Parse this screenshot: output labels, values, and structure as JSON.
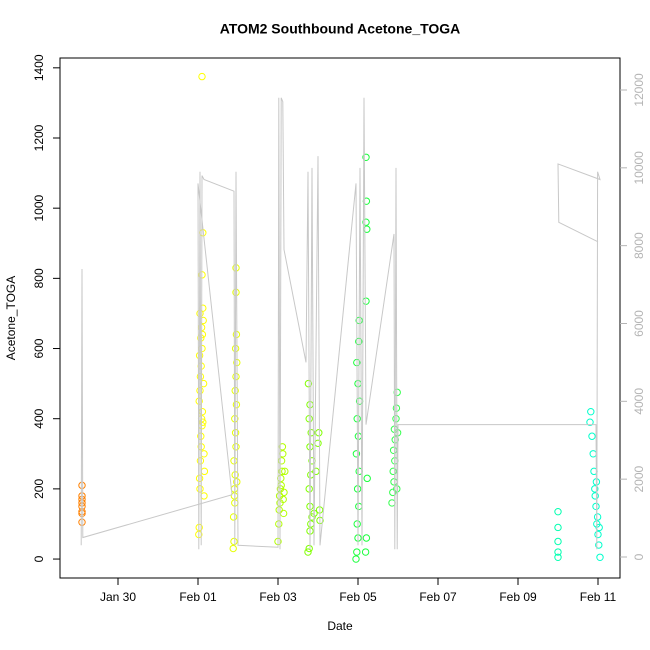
{
  "chart_data": {
    "type": "scatter",
    "title": "ATOM2 Southbound Acetone_TOGA",
    "x_label": "Date",
    "y_label": "Acetone_TOGA",
    "xlim": [
      28.55,
      42.55
    ],
    "ylim": [
      -54,
      1428
    ],
    "y2lim": [
      -540,
      12822
    ],
    "xticks": [
      {
        "value": 30,
        "label": "Jan 30"
      },
      {
        "value": 32,
        "label": "Feb 01"
      },
      {
        "value": 34,
        "label": "Feb 03"
      },
      {
        "value": 36,
        "label": "Feb 05"
      },
      {
        "value": 38,
        "label": "Feb 07"
      },
      {
        "value": 40,
        "label": "Feb 09"
      },
      {
        "value": 42,
        "label": "Feb 11"
      }
    ],
    "yticks": [
      0,
      200,
      400,
      600,
      800,
      1000,
      1200,
      1400
    ],
    "y2ticks": [
      0,
      2000,
      4000,
      6000,
      8000,
      10000,
      12000
    ],
    "series": [
      {
        "color": "#ff8000",
        "x": [
          29.1,
          29.1,
          29.1,
          29.1,
          29.1,
          29.1,
          29.1,
          29.1
        ],
        "values": [
          105,
          130,
          135,
          150,
          160,
          170,
          180,
          210
        ]
      },
      {
        "color": "#ffff00",
        "x": [
          32.02,
          32.03,
          32.05,
          32.04,
          32.06,
          32.08,
          32.07,
          32.1,
          32.09,
          32.11,
          32.12,
          32.03,
          32.05,
          32.06,
          32.08,
          32.04,
          32.1,
          32.07,
          32.09,
          32.05,
          32.12,
          32.13,
          32.11,
          32.14,
          32.15,
          32.16,
          32.1,
          32.12,
          32.1,
          32.15
        ],
        "values": [
          70,
          90,
          200,
          230,
          280,
          320,
          350,
          380,
          400,
          420,
          390,
          450,
          480,
          520,
          550,
          580,
          600,
          630,
          660,
          700,
          715,
          680,
          640,
          500,
          300,
          250,
          810,
          930,
          1375,
          180
        ]
      },
      {
        "color": "#e6ff00",
        "x": [
          32.88,
          32.9,
          32.89,
          32.92,
          32.91,
          32.93,
          32.9,
          32.95,
          32.94,
          32.92,
          32.96,
          32.93,
          32.95,
          32.97,
          32.94,
          32.96,
          32.95,
          32.95,
          32.91,
          32.97
        ],
        "values": [
          30,
          50,
          120,
          160,
          200,
          240,
          280,
          320,
          360,
          400,
          440,
          480,
          520,
          560,
          600,
          640,
          760,
          830,
          180,
          220
        ]
      },
      {
        "color": "#b3ff00",
        "x": [
          34.0,
          34.02,
          34.03,
          34.05,
          34.04,
          34.06,
          34.08,
          34.07,
          34.1,
          34.09,
          34.12,
          34.11,
          34.15,
          34.17,
          34.13,
          34.14
        ],
        "values": [
          50,
          100,
          140,
          160,
          180,
          200,
          210,
          230,
          250,
          280,
          300,
          320,
          190,
          250,
          170,
          130
        ]
      },
      {
        "color": "#80ff00",
        "x": [
          34.75,
          34.78,
          34.8,
          34.82,
          34.85,
          34.8,
          34.78,
          34.82,
          34.85,
          34.8,
          34.83,
          34.78,
          34.8,
          34.76,
          34.9,
          34.95,
          35.0,
          35.02,
          35.04,
          35.05
        ],
        "values": [
          20,
          30,
          80,
          100,
          120,
          150,
          200,
          240,
          280,
          320,
          360,
          400,
          440,
          500,
          130,
          250,
          330,
          360,
          140,
          110
        ]
      },
      {
        "color": "#1aff3c",
        "x": [
          35.95,
          35.97,
          36.0,
          35.98,
          36.02,
          35.99,
          36.03,
          35.96,
          36.01,
          35.98,
          36.04,
          36.0,
          35.97,
          36.02,
          36.03,
          36.2,
          36.21,
          36.2,
          36.22,
          36.2,
          36.23,
          36.19,
          36.21
        ],
        "values": [
          0,
          20,
          60,
          100,
          150,
          200,
          250,
          300,
          350,
          400,
          450,
          500,
          560,
          620,
          680,
          1145,
          1020,
          960,
          940,
          735,
          230,
          20,
          60
        ]
      },
      {
        "color": "#33ff4d",
        "x": [
          36.85,
          36.87,
          36.9,
          36.88,
          36.92,
          36.89,
          36.93,
          36.91,
          36.95,
          36.96,
          36.98,
          36.97,
          36.99
        ],
        "values": [
          160,
          190,
          220,
          250,
          280,
          310,
          340,
          370,
          400,
          430,
          475,
          200,
          360
        ]
      },
      {
        "color": "#00ffb0",
        "x": [
          41.0,
          41.0,
          41.0,
          41.0,
          41.0
        ],
        "values": [
          5,
          20,
          50,
          90,
          135
        ]
      },
      {
        "color": "#00ffcc",
        "x": [
          41.8,
          41.82,
          41.85,
          41.88,
          41.9,
          41.92,
          41.95,
          41.97,
          42.0,
          42.02,
          42.05,
          41.93,
          41.96,
          41.99,
          42.03
        ],
        "values": [
          390,
          420,
          350,
          300,
          250,
          200,
          150,
          100,
          70,
          40,
          5,
          180,
          220,
          120,
          90
        ]
      },
      {
        "color": "#c8c8c8",
        "axis": "y2",
        "x": [
          29.08,
          29.1,
          29.12,
          32.85,
          32.0,
          32.02,
          32.05,
          32.08,
          32.1,
          32.15,
          32.9,
          32.92,
          32.95,
          33.0,
          34.0,
          34.02,
          34.05,
          34.08,
          34.12,
          34.15,
          34.7,
          34.75,
          34.8,
          34.85,
          34.9,
          35.0,
          35.05,
          35.95,
          36.0,
          36.05,
          36.1,
          36.15,
          36.2,
          36.9,
          36.92,
          36.95,
          36.98,
          37.0,
          41.95,
          41.97,
          41.99,
          42.05,
          41.0,
          41.02,
          42.0
        ],
        "values": [
          300,
          7400,
          500,
          1600,
          9600,
          200,
          9900,
          300,
          9800,
          9700,
          9400,
          300,
          9900,
          300,
          250,
          11800,
          200,
          11800,
          11700,
          7900,
          5000,
          9900,
          200,
          10000,
          300,
          10300,
          300,
          9600,
          300,
          10000,
          300,
          11800,
          3400,
          8300,
          200,
          10000,
          200,
          3400,
          3400,
          200,
          9900,
          9700,
          10100,
          8600,
          8100
        ]
      }
    ]
  }
}
